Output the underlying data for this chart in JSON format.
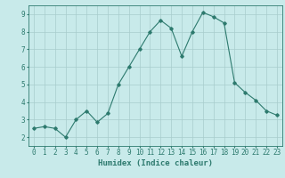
{
  "x": [
    0,
    1,
    2,
    3,
    4,
    5,
    6,
    7,
    8,
    9,
    10,
    11,
    12,
    13,
    14,
    15,
    16,
    17,
    18,
    19,
    20,
    21,
    22,
    23
  ],
  "y": [
    2.5,
    2.6,
    2.5,
    2.0,
    3.0,
    3.5,
    2.85,
    3.35,
    5.0,
    6.0,
    7.0,
    8.0,
    8.65,
    8.2,
    6.6,
    8.0,
    9.1,
    8.85,
    8.5,
    5.1,
    4.55,
    4.1,
    3.5,
    3.25
  ],
  "line_color": "#2d7a6e",
  "bg_color": "#c8eaea",
  "grid_color": "#a8cccc",
  "xlabel": "Humidex (Indice chaleur)",
  "ylim": [
    1.5,
    9.5
  ],
  "xlim": [
    -0.5,
    23.5
  ],
  "yticks": [
    2,
    3,
    4,
    5,
    6,
    7,
    8,
    9
  ],
  "xticks": [
    0,
    1,
    2,
    3,
    4,
    5,
    6,
    7,
    8,
    9,
    10,
    11,
    12,
    13,
    14,
    15,
    16,
    17,
    18,
    19,
    20,
    21,
    22,
    23
  ],
  "tick_color": "#2d7a6e",
  "label_fontsize": 6.5,
  "tick_fontsize": 5.5
}
